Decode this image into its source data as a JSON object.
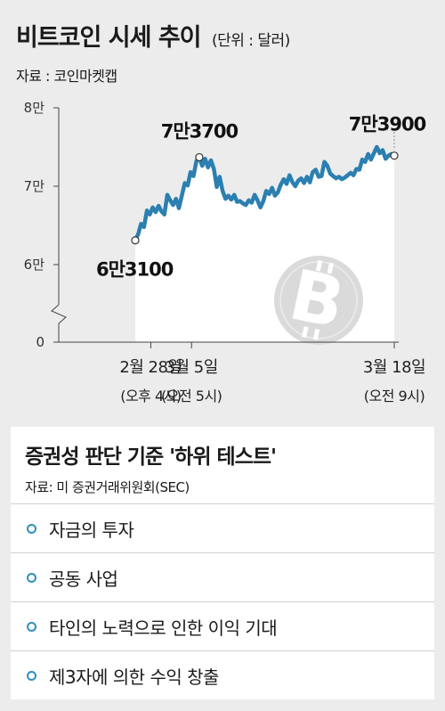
{
  "title": "비트코인 시세 추이",
  "unit": "(단위 : 달러)",
  "source": "자료 : 코인마켓캡",
  "chart_data": {
    "type": "line",
    "series": [
      {
        "values": [
          {
            "day": 0.0,
            "y": 63100
          },
          {
            "day": 0.15,
            "y": 63900
          },
          {
            "day": 0.3,
            "y": 65200
          },
          {
            "day": 0.45,
            "y": 64800
          },
          {
            "day": 0.6,
            "y": 66900
          },
          {
            "day": 0.75,
            "y": 66400
          },
          {
            "day": 0.9,
            "y": 67300
          },
          {
            "day": 1.05,
            "y": 66700
          },
          {
            "day": 1.2,
            "y": 67500
          },
          {
            "day": 1.35,
            "y": 66800
          },
          {
            "day": 1.5,
            "y": 66400
          },
          {
            "day": 1.65,
            "y": 68900
          },
          {
            "day": 1.8,
            "y": 68200
          },
          {
            "day": 1.95,
            "y": 67600
          },
          {
            "day": 2.1,
            "y": 68400
          },
          {
            "day": 2.25,
            "y": 67200
          },
          {
            "day": 2.4,
            "y": 68800
          },
          {
            "day": 2.55,
            "y": 70400
          },
          {
            "day": 2.7,
            "y": 70100
          },
          {
            "day": 2.85,
            "y": 71800
          },
          {
            "day": 3.0,
            "y": 71300
          },
          {
            "day": 3.15,
            "y": 73200
          },
          {
            "day": 3.3,
            "y": 73700
          },
          {
            "day": 3.45,
            "y": 72600
          },
          {
            "day": 3.6,
            "y": 73500
          },
          {
            "day": 3.75,
            "y": 72400
          },
          {
            "day": 3.9,
            "y": 73300
          },
          {
            "day": 4.05,
            "y": 72200
          },
          {
            "day": 4.2,
            "y": 69900
          },
          {
            "day": 4.35,
            "y": 71200
          },
          {
            "day": 4.5,
            "y": 69400
          },
          {
            "day": 4.65,
            "y": 68400
          },
          {
            "day": 4.8,
            "y": 68800
          },
          {
            "day": 4.95,
            "y": 68300
          },
          {
            "day": 5.1,
            "y": 68900
          },
          {
            "day": 5.25,
            "y": 68000
          },
          {
            "day": 5.4,
            "y": 68100
          },
          {
            "day": 5.55,
            "y": 67800
          },
          {
            "day": 5.7,
            "y": 67600
          },
          {
            "day": 5.85,
            "y": 68200
          },
          {
            "day": 6.0,
            "y": 67900
          },
          {
            "day": 6.15,
            "y": 68900
          },
          {
            "day": 6.3,
            "y": 68200
          },
          {
            "day": 6.45,
            "y": 67300
          },
          {
            "day": 6.6,
            "y": 68100
          },
          {
            "day": 6.75,
            "y": 69400
          },
          {
            "day": 6.9,
            "y": 69000
          },
          {
            "day": 7.05,
            "y": 69800
          },
          {
            "day": 7.2,
            "y": 68800
          },
          {
            "day": 7.35,
            "y": 69200
          },
          {
            "day": 7.5,
            "y": 70200
          },
          {
            "day": 7.65,
            "y": 70900
          },
          {
            "day": 7.8,
            "y": 70300
          },
          {
            "day": 7.95,
            "y": 71400
          },
          {
            "day": 8.1,
            "y": 70500
          },
          {
            "day": 8.25,
            "y": 70000
          },
          {
            "day": 8.4,
            "y": 70700
          },
          {
            "day": 8.55,
            "y": 71000
          },
          {
            "day": 8.7,
            "y": 70400
          },
          {
            "day": 8.85,
            "y": 71200
          },
          {
            "day": 9.0,
            "y": 70500
          },
          {
            "day": 9.15,
            "y": 71800
          },
          {
            "day": 9.3,
            "y": 72100
          },
          {
            "day": 9.45,
            "y": 71200
          },
          {
            "day": 9.6,
            "y": 71300
          },
          {
            "day": 9.75,
            "y": 73100
          },
          {
            "day": 9.9,
            "y": 72600
          },
          {
            "day": 10.05,
            "y": 71600
          },
          {
            "day": 10.2,
            "y": 71300
          },
          {
            "day": 10.35,
            "y": 71000
          },
          {
            "day": 10.5,
            "y": 71200
          },
          {
            "day": 10.65,
            "y": 70900
          },
          {
            "day": 10.8,
            "y": 71100
          },
          {
            "day": 10.95,
            "y": 71400
          },
          {
            "day": 11.1,
            "y": 71700
          },
          {
            "day": 11.25,
            "y": 71400
          },
          {
            "day": 11.4,
            "y": 72200
          },
          {
            "day": 11.55,
            "y": 72100
          },
          {
            "day": 11.7,
            "y": 73400
          },
          {
            "day": 11.85,
            "y": 73100
          },
          {
            "day": 12.0,
            "y": 74100
          },
          {
            "day": 12.15,
            "y": 73400
          },
          {
            "day": 12.3,
            "y": 74200
          },
          {
            "day": 12.45,
            "y": 75000
          },
          {
            "day": 12.6,
            "y": 74200
          },
          {
            "day": 12.75,
            "y": 74600
          },
          {
            "day": 12.9,
            "y": 73500
          },
          {
            "day": 13.05,
            "y": 73900
          },
          {
            "day": 13.2,
            "y": 74100
          },
          {
            "day": 13.35,
            "y": 73900
          }
        ]
      }
    ],
    "y_ticks": [
      {
        "value": 0,
        "label": "0"
      },
      {
        "value": 60000,
        "label": "6만"
      },
      {
        "value": 70000,
        "label": "7만"
      },
      {
        "value": 80000,
        "label": "8만"
      }
    ],
    "x_ticks": [
      {
        "day": 0.8,
        "label": "2월 28일",
        "sub": "(오후 4시)"
      },
      {
        "day": 2.9,
        "label": "3월 5일",
        "sub": "(오전 5시)"
      },
      {
        "day": 13.35,
        "label": "3월 18일",
        "sub": "(오전 9시)"
      }
    ],
    "annotations": [
      {
        "day": 0.0,
        "y": 63100,
        "label": "6만3100"
      },
      {
        "day": 3.3,
        "y": 73700,
        "label": "7만3700"
      },
      {
        "day": 13.35,
        "y": 73900,
        "label": "7만3900"
      }
    ],
    "ylim": [
      0,
      80000
    ],
    "axis_break": true,
    "line_color": "#2b7fb1",
    "grid": false
  },
  "panel": {
    "title": "증권성 판단 기준 '하위 테스트'",
    "source": "자료: 미 증권거래위원회(SEC)",
    "items": [
      {
        "text": "자금의 투자"
      },
      {
        "text": "공동 사업"
      },
      {
        "text": "타인의 노력으로 인한 이익 기대"
      },
      {
        "text": "제3자에 의한 수익 창출"
      }
    ]
  }
}
